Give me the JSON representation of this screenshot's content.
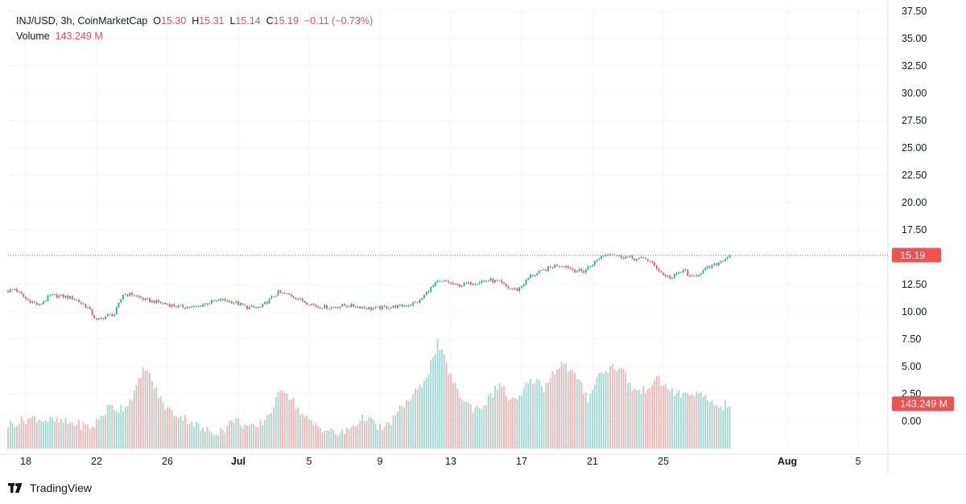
{
  "header": {
    "symbol": "INJ/USD, 3h, CoinMarketCap",
    "o_label": "O",
    "o_value": "15.30",
    "h_label": "H",
    "h_value": "15.31",
    "l_label": "L",
    "l_value": "15.14",
    "c_label": "C",
    "c_value": "15.19",
    "change": "−0.11 (−0.73%)",
    "volume_label": "Volume",
    "volume_value": "143.249 M"
  },
  "branding": {
    "name": "TradingView"
  },
  "colors": {
    "up": "#26a69a",
    "down": "#ef5350",
    "up_volume": "#9fd8d2",
    "down_volume": "#f5b3b3",
    "price_tag": "#ef5350",
    "grid": "#f0f3fa"
  },
  "chart_data": {
    "type": "candlestick",
    "price_axis": {
      "ticks": [
        "37.50",
        "35.00",
        "32.50",
        "30.00",
        "27.50",
        "25.00",
        "22.50",
        "20.00",
        "17.50",
        "15.19",
        "12.50",
        "10.00",
        "7.50",
        "5.00",
        "2.50",
        "0.00"
      ],
      "last_price": 15.19,
      "last_price_label": "15.19",
      "ylim": [
        0,
        37.5
      ]
    },
    "volume_axis": {
      "last_volume_label": "143.249 M",
      "last_volume": 143.249
    },
    "time_axis": {
      "ticks": [
        {
          "label": "18",
          "bar": 8
        },
        {
          "label": "22",
          "bar": 40
        },
        {
          "label": "26",
          "bar": 72
        },
        {
          "label": "Jul",
          "bar": 104
        },
        {
          "label": "5",
          "bar": 136
        },
        {
          "label": "9",
          "bar": 168
        },
        {
          "label": "13",
          "bar": 200
        },
        {
          "label": "17",
          "bar": 232
        },
        {
          "label": "21",
          "bar": 264
        },
        {
          "label": "25",
          "bar": 296
        },
        {
          "label": "Aug",
          "bar": 352
        },
        {
          "label": "5",
          "bar": 384
        }
      ]
    },
    "bar_count": 327,
    "price_keypoints": [
      [
        0,
        11.9
      ],
      [
        3,
        12.1
      ],
      [
        8,
        11.2
      ],
      [
        14,
        10.6
      ],
      [
        19,
        11.5
      ],
      [
        26,
        11.4
      ],
      [
        30,
        11.2
      ],
      [
        36,
        10.4
      ],
      [
        40,
        9.2
      ],
      [
        44,
        9.6
      ],
      [
        48,
        9.8
      ],
      [
        52,
        11.6
      ],
      [
        56,
        11.6
      ],
      [
        62,
        11.1
      ],
      [
        70,
        10.8
      ],
      [
        76,
        10.5
      ],
      [
        84,
        10.4
      ],
      [
        90,
        10.8
      ],
      [
        96,
        11.1
      ],
      [
        102,
        10.9
      ],
      [
        108,
        10.4
      ],
      [
        114,
        10.4
      ],
      [
        118,
        11.1
      ],
      [
        122,
        11.8
      ],
      [
        128,
        11.5
      ],
      [
        134,
        10.9
      ],
      [
        140,
        10.5
      ],
      [
        146,
        10.4
      ],
      [
        152,
        10.6
      ],
      [
        158,
        10.5
      ],
      [
        164,
        10.3
      ],
      [
        170,
        10.4
      ],
      [
        176,
        10.5
      ],
      [
        182,
        10.7
      ],
      [
        186,
        11.0
      ],
      [
        190,
        12.0
      ],
      [
        194,
        12.7
      ],
      [
        198,
        12.8
      ],
      [
        202,
        12.4
      ],
      [
        208,
        12.6
      ],
      [
        214,
        12.8
      ],
      [
        218,
        12.9
      ],
      [
        222,
        12.7
      ],
      [
        226,
        12.2
      ],
      [
        230,
        12.0
      ],
      [
        233,
        12.6
      ],
      [
        236,
        13.3
      ],
      [
        240,
        13.6
      ],
      [
        244,
        14.0
      ],
      [
        248,
        14.3
      ],
      [
        252,
        14.2
      ],
      [
        256,
        13.8
      ],
      [
        260,
        13.7
      ],
      [
        264,
        14.4
      ],
      [
        268,
        15.1
      ],
      [
        272,
        15.4
      ],
      [
        276,
        15.1
      ],
      [
        280,
        15.0
      ],
      [
        284,
        14.8
      ],
      [
        288,
        14.9
      ],
      [
        292,
        14.2
      ],
      [
        296,
        13.4
      ],
      [
        300,
        13.1
      ],
      [
        303,
        13.6
      ],
      [
        306,
        13.8
      ],
      [
        308,
        13.1
      ],
      [
        312,
        13.5
      ],
      [
        316,
        14.0
      ],
      [
        320,
        14.4
      ],
      [
        323,
        14.8
      ],
      [
        326,
        15.19
      ]
    ],
    "volume_keypoints": [
      [
        0,
        1.7
      ],
      [
        6,
        2.0
      ],
      [
        12,
        2.2
      ],
      [
        18,
        2.0
      ],
      [
        24,
        1.9
      ],
      [
        30,
        1.8
      ],
      [
        38,
        1.5
      ],
      [
        42,
        2.3
      ],
      [
        46,
        3.0
      ],
      [
        50,
        2.8
      ],
      [
        54,
        3.2
      ],
      [
        58,
        4.3
      ],
      [
        62,
        5.9
      ],
      [
        66,
        4.4
      ],
      [
        70,
        3.2
      ],
      [
        74,
        2.6
      ],
      [
        78,
        2.3
      ],
      [
        84,
        1.8
      ],
      [
        88,
        1.3
      ],
      [
        94,
        1.2
      ],
      [
        98,
        1.4
      ],
      [
        102,
        2.1
      ],
      [
        108,
        1.6
      ],
      [
        112,
        1.4
      ],
      [
        116,
        2.1
      ],
      [
        120,
        3.0
      ],
      [
        124,
        4.4
      ],
      [
        128,
        3.6
      ],
      [
        132,
        2.6
      ],
      [
        136,
        1.9
      ],
      [
        140,
        1.6
      ],
      [
        144,
        1.3
      ],
      [
        150,
        1.0
      ],
      [
        154,
        1.4
      ],
      [
        158,
        1.9
      ],
      [
        162,
        2.3
      ],
      [
        166,
        1.6
      ],
      [
        170,
        1.4
      ],
      [
        174,
        2.1
      ],
      [
        178,
        3.0
      ],
      [
        182,
        3.6
      ],
      [
        186,
        4.3
      ],
      [
        190,
        5.6
      ],
      [
        194,
        7.5
      ],
      [
        198,
        6.0
      ],
      [
        202,
        4.4
      ],
      [
        206,
        3.4
      ],
      [
        210,
        2.9
      ],
      [
        214,
        3.0
      ],
      [
        218,
        3.7
      ],
      [
        222,
        4.7
      ],
      [
        226,
        3.6
      ],
      [
        230,
        3.3
      ],
      [
        234,
        4.4
      ],
      [
        238,
        5.0
      ],
      [
        242,
        4.3
      ],
      [
        246,
        5.4
      ],
      [
        250,
        6.1
      ],
      [
        254,
        5.6
      ],
      [
        258,
        4.7
      ],
      [
        262,
        3.6
      ],
      [
        266,
        5.1
      ],
      [
        270,
        5.6
      ],
      [
        274,
        5.9
      ],
      [
        278,
        5.5
      ],
      [
        282,
        4.3
      ],
      [
        286,
        4.0
      ],
      [
        290,
        4.6
      ],
      [
        294,
        4.9
      ],
      [
        298,
        4.3
      ],
      [
        302,
        3.9
      ],
      [
        306,
        3.8
      ],
      [
        310,
        4.0
      ],
      [
        314,
        3.6
      ],
      [
        318,
        3.3
      ],
      [
        322,
        3.0
      ],
      [
        326,
        3.2
      ]
    ]
  }
}
